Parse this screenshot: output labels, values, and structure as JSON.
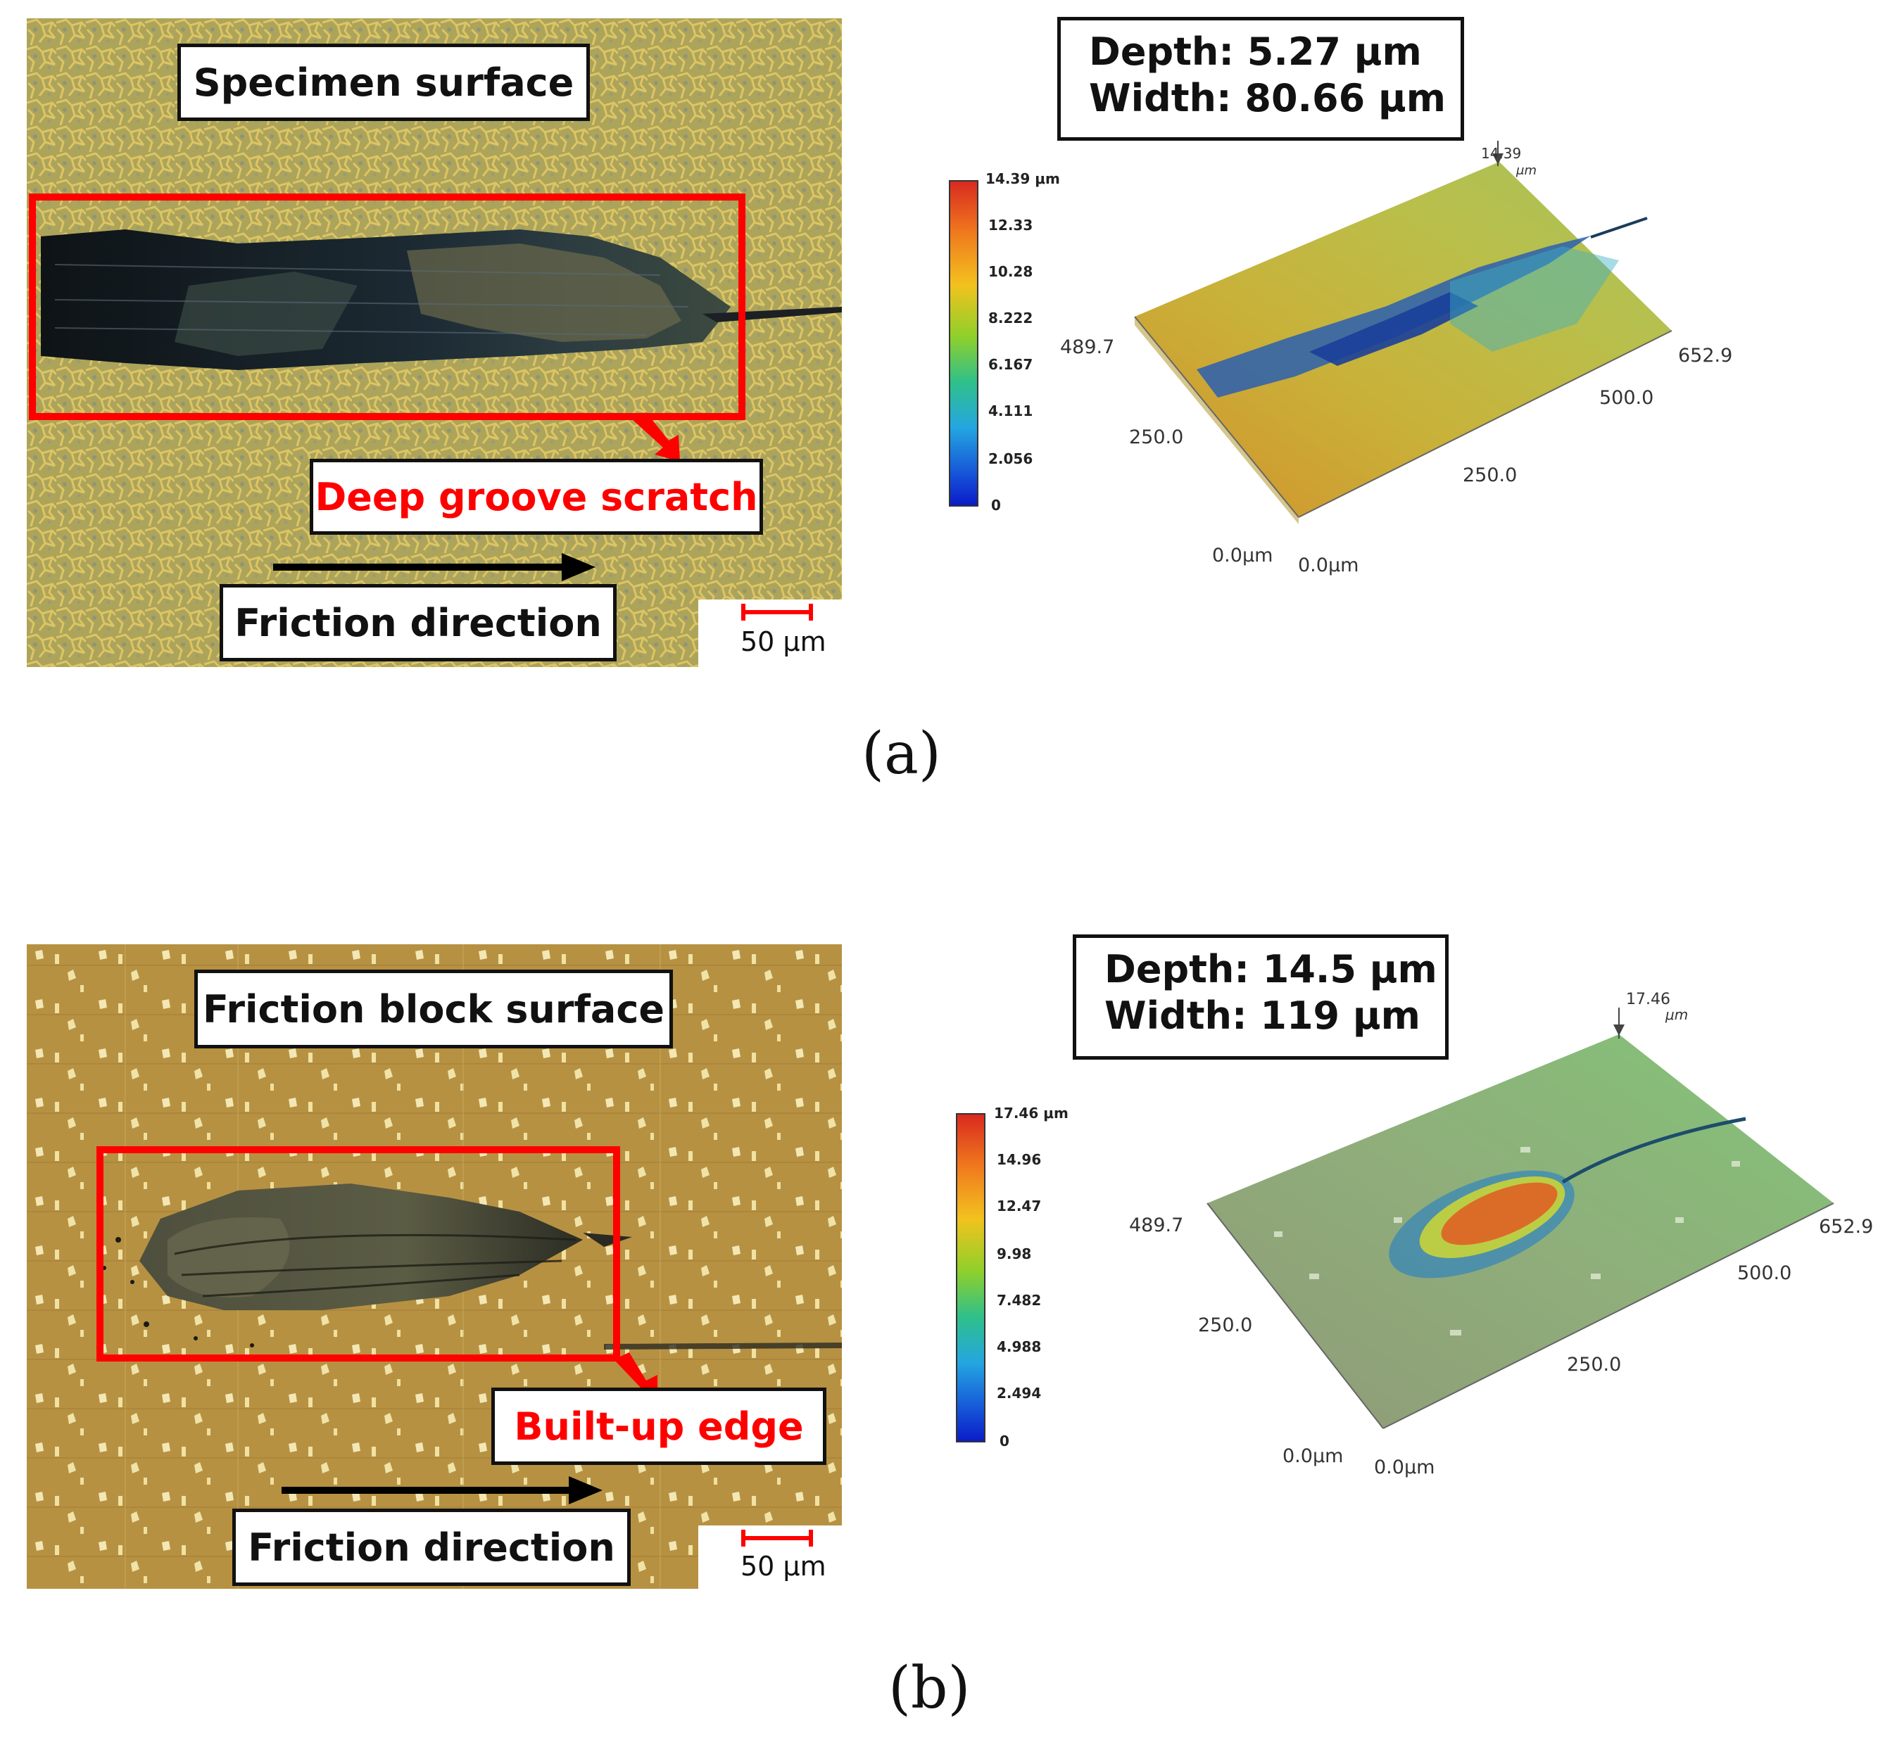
{
  "panel_a": {
    "letter": "(a)",
    "title": "Specimen surface",
    "callout": "Deep groove scratch",
    "direction": "Friction direction",
    "scale": "50 μm",
    "depth_line": "Depth:  5.27 μm",
    "width_line": "Width:  80.66 μm",
    "colorbar_ticks": [
      "14.39 μm",
      "12.33",
      "10.28",
      "8.222",
      "6.167",
      "4.111",
      "2.056",
      "0"
    ],
    "z_max": "14.39",
    "z_unit": "μm",
    "axis": {
      "y_max": "489.7",
      "y_mid": "250.0",
      "x_max": "652.9",
      "x_mid2": "500.0",
      "x_mid": "250.0",
      "origin_y": "0.0μm",
      "origin_x": "0.0μm"
    }
  },
  "panel_b": {
    "letter": "(b)",
    "title": "Friction block surface",
    "callout": "Built-up edge",
    "direction": "Friction direction",
    "scale": "50 μm",
    "depth_line": "Depth:  14.5 μm",
    "width_line": "Width:  119 μm",
    "colorbar_ticks": [
      "17.46 μm",
      "14.96",
      "12.47",
      "9.98",
      "7.482",
      "4.988",
      "2.494",
      "0"
    ],
    "z_max": "17.46",
    "z_unit": "μm",
    "axis": {
      "y_max": "489.7",
      "y_mid": "250.0",
      "x_max": "652.9",
      "x_mid2": "500.0",
      "x_mid": "250.0",
      "origin_y": "0.0μm",
      "origin_x": "0.0μm"
    }
  },
  "colors": {
    "highlight_red": "#ff0000",
    "micro_a_base": "#b3a45c",
    "micro_b_base": "#b08b3e"
  }
}
